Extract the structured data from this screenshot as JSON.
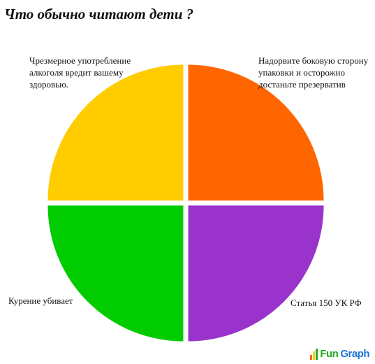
{
  "chart_data": {
    "type": "pie",
    "title": "Что обычно читают дети ?",
    "slices": [
      {
        "label": "Надорвите боковую сторону\nупаковки и осторожно\nдостаньте презерватив",
        "value": 25,
        "color": "#ff6600"
      },
      {
        "label": "Статья 150 УК РФ",
        "value": 25,
        "color": "#9933cc"
      },
      {
        "label": "Курение убивает",
        "value": 25,
        "color": "#00cc00"
      },
      {
        "label": "Чрезмерное употребление\nалкоголя вредит вашему\nздоровью.",
        "value": 25,
        "color": "#ffcc00"
      }
    ]
  },
  "logo": {
    "part1": "Fun",
    "part2": "Graph"
  }
}
